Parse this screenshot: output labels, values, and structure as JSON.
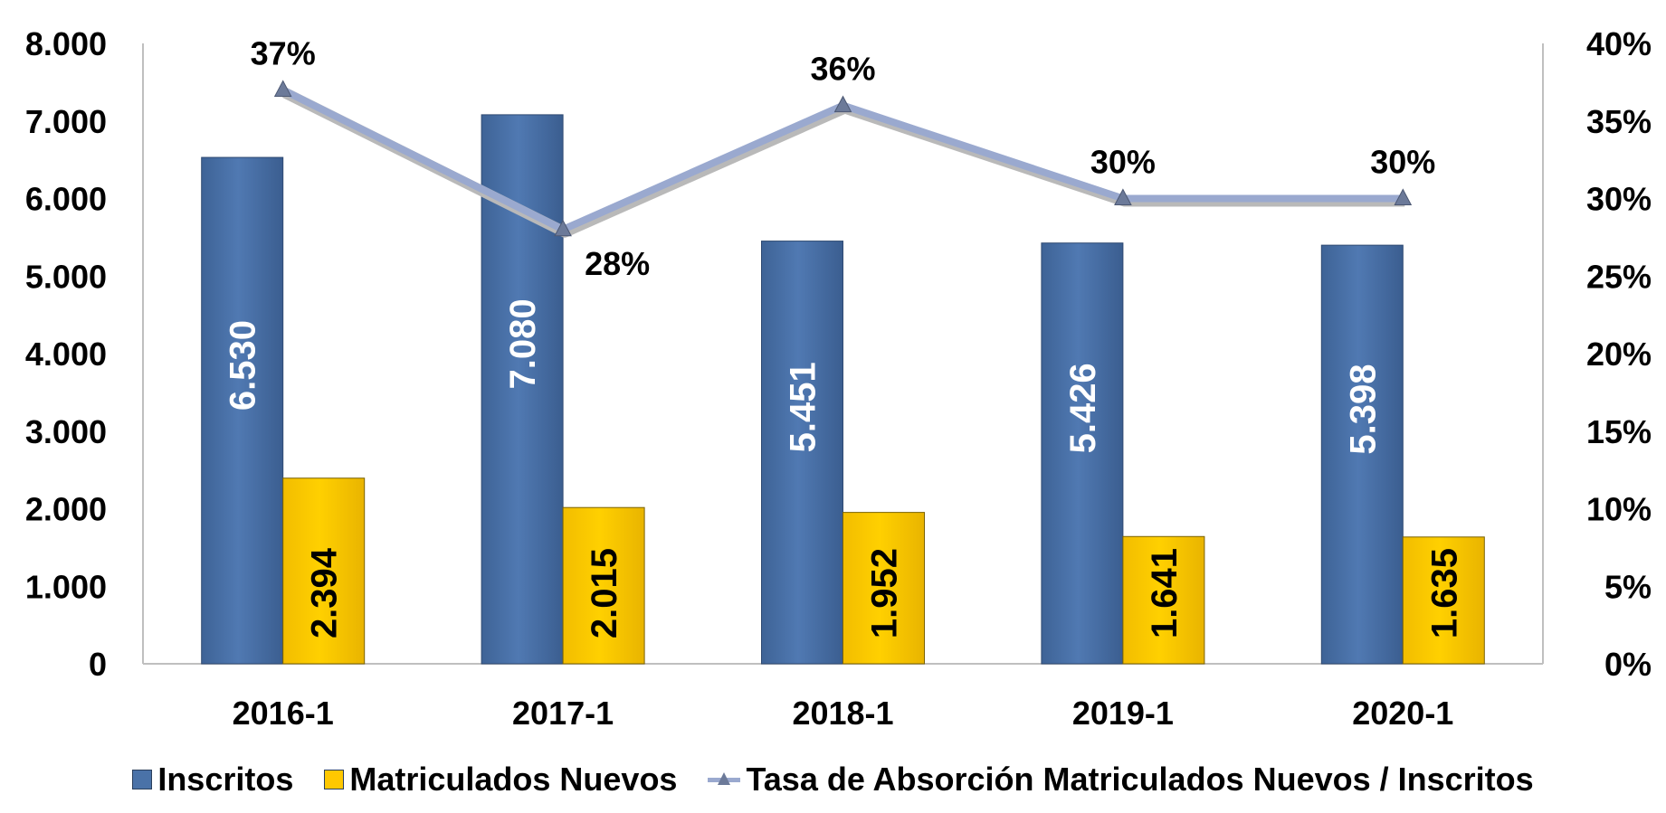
{
  "chart_data": {
    "type": "bar",
    "categories": [
      "2016-1",
      "2017-1",
      "2018-1",
      "2019-1",
      "2020-1"
    ],
    "series": [
      {
        "name": "Inscritos",
        "axis": "left",
        "kind": "bar",
        "color": "#4a72a8",
        "values": [
          6530,
          7080,
          5451,
          5426,
          5398
        ],
        "labels": [
          "6.530",
          "7.080",
          "5.451",
          "5.426",
          "5.398"
        ]
      },
      {
        "name": "Matriculados Nuevos",
        "axis": "left",
        "kind": "bar",
        "color": "#ffc800",
        "values": [
          2394,
          2015,
          1952,
          1641,
          1635
        ],
        "labels": [
          "2.394",
          "2.015",
          "1.952",
          "1.641",
          "1.635"
        ]
      },
      {
        "name": "Tasa de Absorción Matriculados Nuevos / Inscritos",
        "axis": "right",
        "kind": "line",
        "color": "#9aa9cf",
        "values": [
          0.37,
          0.28,
          0.36,
          0.3,
          0.3
        ],
        "labels": [
          "37%",
          "28%",
          "36%",
          "30%",
          "30%"
        ]
      }
    ],
    "ylim": [
      0,
      8000
    ],
    "y_ticks": [
      "0",
      "1.000",
      "2.000",
      "3.000",
      "4.000",
      "5.000",
      "6.000",
      "7.000",
      "8.000"
    ],
    "y2lim": [
      0,
      0.4
    ],
    "y2_ticks": [
      "0%",
      "5%",
      "10%",
      "15%",
      "20%",
      "25%",
      "30%",
      "35%",
      "40%"
    ],
    "legend_position": "bottom",
    "grid": false
  }
}
